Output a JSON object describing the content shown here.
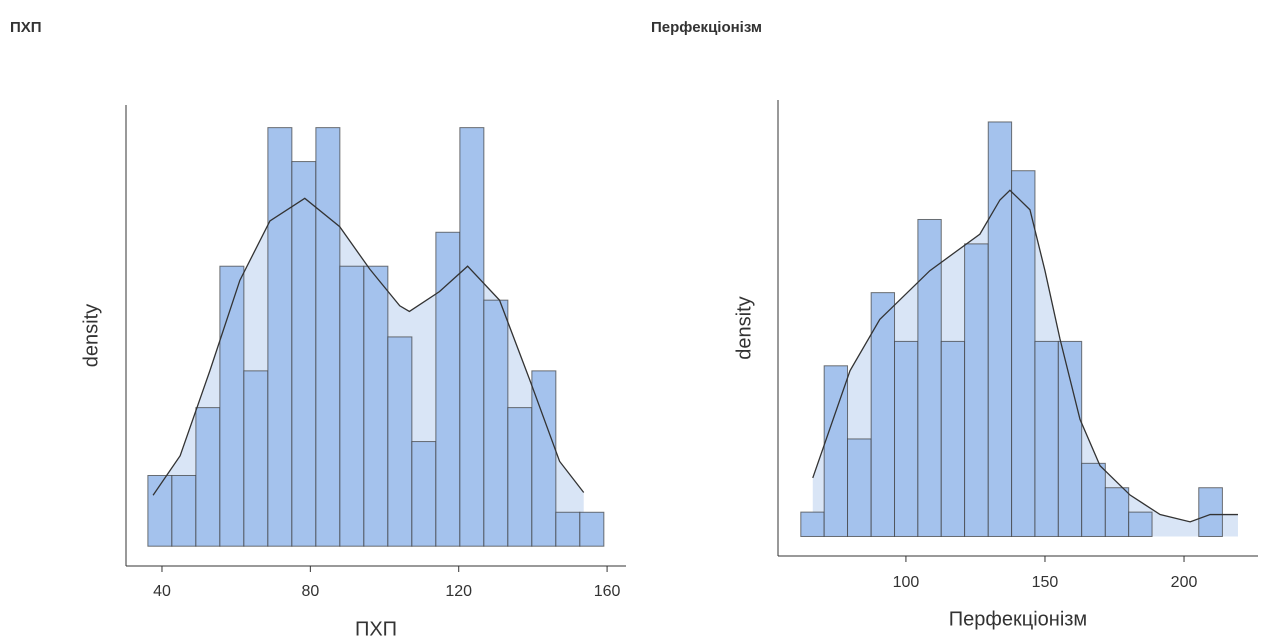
{
  "chart_data": [
    {
      "type": "histogram",
      "title": "ПХП",
      "xlabel": "ПХП",
      "ylabel": "density",
      "bins": [
        36.2,
        42.67,
        49.14,
        55.61,
        62.08,
        68.55,
        75.02,
        81.49,
        87.96,
        94.43,
        100.9,
        107.37,
        113.84,
        120.31,
        126.78,
        133.25,
        139.72,
        146.19,
        152.66,
        159.13
      ],
      "values": [
        0.0025,
        0.0025,
        0.0049,
        0.0099,
        0.0062,
        0.0148,
        0.0136,
        0.0148,
        0.0099,
        0.0099,
        0.0074,
        0.0037,
        0.0111,
        0.0148,
        0.0087,
        0.0049,
        0.0062,
        0.0012,
        0.0012
      ],
      "color": "#a4c2ed",
      "density": {
        "x": [
          37.6,
          44.9,
          52.9,
          61.0,
          69.1,
          78.5,
          87.9,
          96.0,
          104.1,
          106.7,
          114.8,
          122.4,
          131.0,
          139.1,
          147.2,
          153.7
        ],
        "values": [
          0.0018,
          0.0032,
          0.0062,
          0.0094,
          0.0115,
          0.0123,
          0.0113,
          0.0098,
          0.0085,
          0.0083,
          0.009,
          0.0099,
          0.0087,
          0.0059,
          0.003,
          0.0019
        ],
        "color": "#333333",
        "fill": "#d9e5f6"
      },
      "xlim": [
        30.3,
        165.1
      ],
      "ylim": [
        -0.0007,
        0.0156
      ],
      "xticks": [
        40,
        80,
        120,
        160
      ]
    },
    {
      "type": "histogram",
      "title": "Перфекціонізм",
      "xlabel": "Перфекціонізм",
      "ylabel": "density",
      "bins": [
        62.2,
        70.6,
        79.0,
        87.5,
        95.9,
        104.3,
        112.7,
        121.1,
        129.6,
        138.0,
        146.4,
        154.8,
        163.2,
        171.7,
        180.1,
        188.5,
        196.9,
        205.3,
        213.8
      ],
      "values": [
        0.001,
        0.007,
        0.004,
        0.01,
        0.008,
        0.013,
        0.008,
        0.012,
        0.017,
        0.015,
        0.008,
        0.008,
        0.003,
        0.002,
        0.001,
        0,
        0,
        0.002
      ],
      "color": "#a4c2ed",
      "density": {
        "x": [
          66.5,
          79.9,
          90.6,
          97.8,
          108.6,
          119.4,
          126.6,
          133.8,
          137.4,
          144.6,
          150.0,
          155.4,
          162.6,
          169.8,
          180.6,
          191.4,
          202.2,
          209.4,
          219.4
        ],
        "values": [
          0.0024,
          0.0068,
          0.0089,
          0.0097,
          0.0109,
          0.0118,
          0.0124,
          0.0138,
          0.0142,
          0.0134,
          0.0109,
          0.0081,
          0.0048,
          0.0029,
          0.0017,
          0.0009,
          0.0006,
          0.0009,
          0.0009
        ],
        "color": "#333333",
        "fill": "#d9e5f6"
      },
      "xlim": [
        54.0,
        226.6
      ],
      "ylim": [
        -0.0008,
        0.0179
      ],
      "xticks": [
        100,
        150,
        200
      ]
    }
  ]
}
